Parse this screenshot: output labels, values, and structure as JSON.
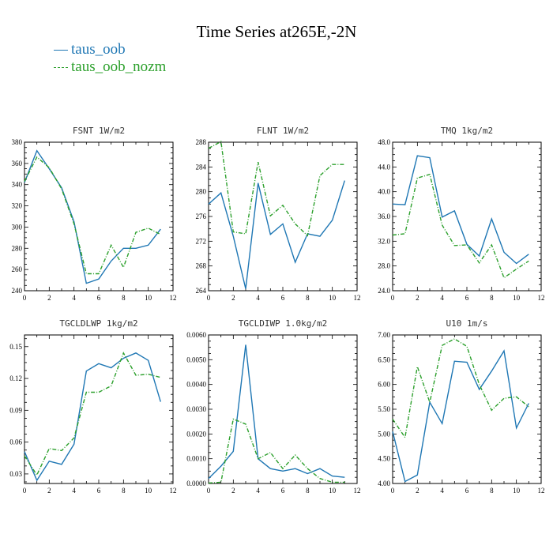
{
  "figure": {
    "title": "Time Series at265E,-2N",
    "legend": [
      {
        "label": "taus_oob",
        "color": "#1f77b4",
        "dash": "solid"
      },
      {
        "label": "taus_oob_nozm",
        "color": "#2ca02c",
        "dash": "dashdot"
      }
    ]
  },
  "chart_data": [
    {
      "type": "line",
      "title": "FSNT   1W/m2",
      "xlim": [
        0,
        12
      ],
      "xticks": [
        0,
        2,
        4,
        6,
        8,
        10,
        12
      ],
      "xtick_labels": [
        "0",
        "2",
        "4",
        "6",
        "8",
        "10",
        "12"
      ],
      "ylim": [
        240,
        380
      ],
      "yticks": [
        240,
        260,
        280,
        300,
        320,
        340,
        360,
        380
      ],
      "ytick_labels": [
        "240",
        "260",
        "280",
        "300",
        "320",
        "340",
        "360",
        "380"
      ],
      "x": [
        0,
        1,
        2,
        3,
        4,
        5,
        6,
        7,
        8,
        9,
        10,
        11
      ],
      "series": [
        {
          "name": "taus_oob",
          "values": [
            342,
            372,
            355,
            337,
            305,
            247,
            251,
            268,
            280,
            280,
            283,
            298
          ]
        },
        {
          "name": "taus_oob_nozm",
          "values": [
            343,
            366,
            356,
            336,
            303,
            256,
            256,
            283,
            262,
            295,
            299,
            293
          ]
        }
      ]
    },
    {
      "type": "line",
      "title": "FLNT   1W/m2",
      "xlim": [
        0,
        12
      ],
      "xticks": [
        0,
        2,
        4,
        6,
        8,
        10,
        12
      ],
      "xtick_labels": [
        "0",
        "2",
        "4",
        "6",
        "8",
        "10",
        "12"
      ],
      "ylim": [
        264,
        288
      ],
      "yticks": [
        264,
        268,
        272,
        276,
        280,
        284,
        288
      ],
      "ytick_labels": [
        "264",
        "268",
        "272",
        "276",
        "280",
        "284",
        "288"
      ],
      "x": [
        0,
        1,
        2,
        3,
        4,
        5,
        6,
        7,
        8,
        9,
        10,
        11
      ],
      "series": [
        {
          "name": "taus_oob",
          "values": [
            278,
            279.8,
            272.8,
            264.3,
            281.4,
            273.1,
            274.8,
            268.6,
            273.2,
            272.8,
            275.4,
            281.8
          ]
        },
        {
          "name": "taus_oob_nozm",
          "values": [
            287,
            288.1,
            273.5,
            273.2,
            284.8,
            276.1,
            277.8,
            274.8,
            272.9,
            282.6,
            284.4,
            284.4
          ]
        }
      ]
    },
    {
      "type": "line",
      "title": "TMQ   1kg/m2",
      "xlim": [
        0,
        12
      ],
      "xticks": [
        0,
        2,
        4,
        6,
        8,
        10,
        12
      ],
      "xtick_labels": [
        "0",
        "2",
        "4",
        "6",
        "8",
        "10",
        "12"
      ],
      "ylim": [
        24,
        48
      ],
      "yticks": [
        24,
        28,
        32,
        36,
        40,
        44,
        48
      ],
      "ytick_labels": [
        "24.0",
        "28.0",
        "32.0",
        "36.0",
        "40.0",
        "44.0",
        "48.0"
      ],
      "x": [
        0,
        1,
        2,
        3,
        4,
        5,
        6,
        7,
        8,
        9,
        10,
        11
      ],
      "series": [
        {
          "name": "taus_oob",
          "values": [
            38,
            37.9,
            45.8,
            45.5,
            35.9,
            36.9,
            31.5,
            29.6,
            35.6,
            30.2,
            28.4,
            29.9
          ]
        },
        {
          "name": "taus_oob_nozm",
          "values": [
            33,
            33.2,
            42.2,
            42.8,
            34.6,
            31.3,
            31.4,
            28.5,
            31.4,
            26.1,
            27.5,
            28.8
          ]
        }
      ]
    },
    {
      "type": "line",
      "title": "TGCLDLWP   1kg/m2",
      "xlim": [
        0,
        12
      ],
      "xticks": [
        0,
        2,
        4,
        6,
        8,
        10,
        12
      ],
      "xtick_labels": [
        "0",
        "2",
        "4",
        "6",
        "8",
        "10",
        "12"
      ],
      "ylim": [
        0.021,
        0.161
      ],
      "yticks": [
        0.03,
        0.06,
        0.09,
        0.12,
        0.15
      ],
      "ytick_labels": [
        "0.03",
        "0.06",
        "0.09",
        "0.12",
        "0.15"
      ],
      "x": [
        0,
        1,
        2,
        3,
        4,
        5,
        6,
        7,
        8,
        9,
        10,
        11
      ],
      "series": [
        {
          "name": "taus_oob",
          "values": [
            0.051,
            0.024,
            0.042,
            0.039,
            0.058,
            0.127,
            0.134,
            0.13,
            0.139,
            0.144,
            0.137,
            0.098
          ]
        },
        {
          "name": "taus_oob_nozm",
          "values": [
            0.047,
            0.029,
            0.054,
            0.052,
            0.064,
            0.107,
            0.107,
            0.113,
            0.144,
            0.123,
            0.124,
            0.121
          ]
        }
      ]
    },
    {
      "type": "line",
      "title": "TGCLDIWP   1.0kg/m2",
      "xlim": [
        0,
        12
      ],
      "xticks": [
        0,
        2,
        4,
        6,
        8,
        10,
        12
      ],
      "xtick_labels": [
        "0",
        "2",
        "4",
        "6",
        "8",
        "10",
        "12"
      ],
      "ylim": [
        0,
        0.006
      ],
      "yticks": [
        0,
        0.001,
        0.002,
        0.003,
        0.004,
        0.005,
        0.006
      ],
      "ytick_labels": [
        "0.0000",
        "0.0010",
        "0.0020",
        "0.0030",
        "0.0040",
        "0.0050",
        "0.0060"
      ],
      "x": [
        0,
        1,
        2,
        3,
        4,
        5,
        6,
        7,
        8,
        9,
        10,
        11
      ],
      "series": [
        {
          "name": "taus_oob",
          "values": [
            0.0002,
            0.0007,
            0.0013,
            0.0056,
            0.001,
            0.0006,
            0.0005,
            0.0006,
            0.0004,
            0.0006,
            0.0003,
            0.00025
          ]
        },
        {
          "name": "taus_oob_nozm",
          "values": [
            2e-05,
            5e-05,
            0.0026,
            0.0024,
            0.001,
            0.00125,
            0.0006,
            0.00115,
            0.0006,
            0.0002,
            5e-05,
            5e-05
          ]
        }
      ]
    },
    {
      "type": "line",
      "title": "U10   1m/s",
      "xlim": [
        0,
        12
      ],
      "xticks": [
        0,
        2,
        4,
        6,
        8,
        10,
        12
      ],
      "xtick_labels": [
        "0",
        "2",
        "4",
        "6",
        "8",
        "10",
        "12"
      ],
      "ylim": [
        4,
        7
      ],
      "yticks": [
        4,
        4.5,
        5,
        5.5,
        6,
        6.5,
        7
      ],
      "ytick_labels": [
        "4.00",
        "4.50",
        "5.00",
        "5.50",
        "6.00",
        "6.50",
        "7.00"
      ],
      "x": [
        0,
        1,
        2,
        3,
        4,
        5,
        6,
        7,
        8,
        9,
        10,
        11
      ],
      "series": [
        {
          "name": "taus_oob",
          "values": [
            5.05,
            4.04,
            4.17,
            5.64,
            5.21,
            6.47,
            6.45,
            5.9,
            6.27,
            6.68,
            5.12,
            5.62
          ]
        },
        {
          "name": "taus_oob_nozm",
          "values": [
            5.3,
            4.93,
            6.36,
            5.64,
            6.79,
            6.92,
            6.77,
            6.0,
            5.48,
            5.72,
            5.75,
            5.55
          ]
        }
      ]
    }
  ]
}
